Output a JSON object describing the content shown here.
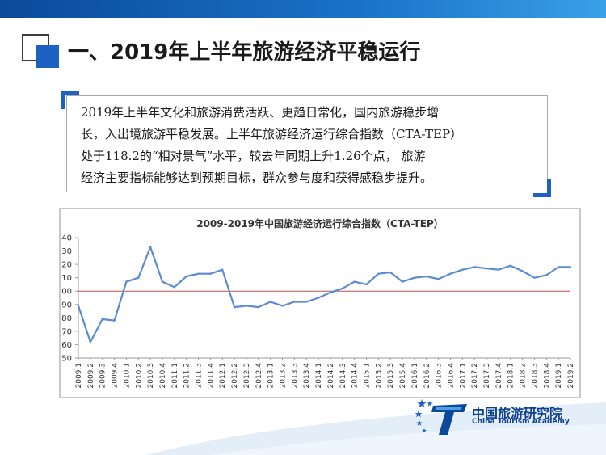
{
  "slide": {
    "title": "一、2019年上半年旅游经济平稳运行",
    "body_lines": [
      "2019年上半年文化和旅游消费活跃、更趋日常化，国内旅游稳步增",
      "长，入出境旅游平稳发展。上半年旅游经济运行综合指数（CTA-TEP）",
      "处于118.2的“相对景气”水平，较去年同期上升1.26个点， 旅游",
      "经济主要指标能够达到预期目标，群众参与度和获得感稳步提升。"
    ],
    "logo": {
      "name_cn": "中国旅游研究院",
      "name_en": "China Tourism Academy"
    },
    "colors": {
      "accent": "#1d62c2",
      "top_bar": "#1a73c8",
      "line": "#5b8bd0",
      "reference_line": "#c0504d"
    }
  },
  "chart_data": {
    "type": "line",
    "title": "2009-2019年中国旅游经济运行综合指数（CTA-TEP）",
    "xlabel": "",
    "ylabel": "",
    "ylim": [
      50,
      140
    ],
    "yticks": [
      50,
      60,
      70,
      80,
      90,
      100,
      110,
      120,
      130,
      140
    ],
    "reference_line": 100,
    "grid": false,
    "legend": "none",
    "categories": [
      "2009.1",
      "2009.2",
      "2009.3",
      "2009.4",
      "2010.1",
      "2010.2",
      "2010.3",
      "2010.4",
      "2011.1",
      "2011.2",
      "2011.3",
      "2011.4",
      "2012.1",
      "2012.2",
      "2012.3",
      "2012.4",
      "2013.1",
      "2013.2",
      "2013.3",
      "2013.4",
      "2014.1",
      "2014.2",
      "2014.3",
      "2014.4",
      "2015.1",
      "2015.2",
      "2015.3",
      "2015.4",
      "2016.1",
      "2016.2",
      "2016.3",
      "2016.4",
      "2017.1",
      "2017.2",
      "2017.3",
      "2017.4",
      "2018.1",
      "2018.2",
      "2018.3",
      "2018.4",
      "2019.1",
      "2019.2"
    ],
    "values": [
      89,
      62,
      79,
      78,
      107,
      110,
      133,
      107,
      103,
      111,
      113,
      113,
      116,
      88,
      89,
      88,
      92,
      89,
      92,
      92,
      95,
      99,
      102,
      107,
      105,
      113,
      114,
      107,
      110,
      111,
      109,
      113,
      116,
      118,
      117,
      116,
      119,
      115,
      110,
      112,
      118,
      118
    ]
  }
}
